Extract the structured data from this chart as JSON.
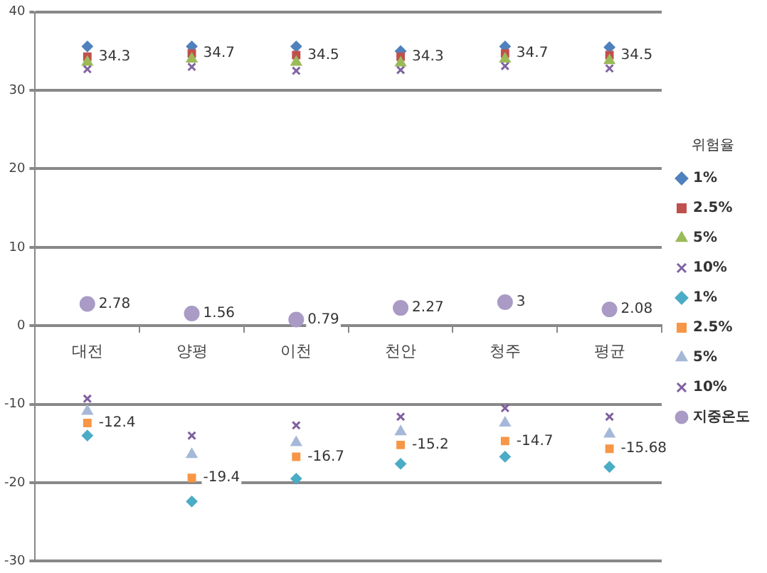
{
  "chart_data": {
    "type": "scatter",
    "categories": [
      "대전",
      "양평",
      "이천",
      "천안",
      "청주",
      "평균"
    ],
    "ylim": [
      -30,
      40
    ],
    "yticks": [
      -30,
      -20,
      -10,
      0,
      10,
      20,
      30,
      40
    ],
    "grid": "y",
    "legend": "right",
    "legend_title": "위험율",
    "series": [
      {
        "name": "1%",
        "color": "#4f81bd",
        "marker": "diamond",
        "values": [
          35.6,
          35.6,
          35.6,
          35.0,
          35.6,
          35.5
        ]
      },
      {
        "name": "2.5%",
        "color": "#c0504d",
        "marker": "square",
        "values": [
          34.3,
          34.7,
          34.5,
          34.3,
          34.7,
          34.5
        ],
        "value_labels": [
          "34.3",
          "34.7",
          "34.5",
          "34.3",
          "34.7",
          "34.5"
        ]
      },
      {
        "name": "5%",
        "color": "#9bbb59",
        "marker": "triangle",
        "values": [
          33.6,
          34.0,
          33.6,
          33.5,
          34.0,
          33.8
        ]
      },
      {
        "name": "10%",
        "color": "#8064a2",
        "marker": "cross",
        "values": [
          32.7,
          33.0,
          32.5,
          32.6,
          33.1,
          32.8
        ]
      },
      {
        "name": "1%",
        "color": "#4bacc6",
        "marker": "diamond",
        "values": [
          -14.0,
          -22.4,
          -19.5,
          -17.6,
          -16.7,
          -18.0
        ]
      },
      {
        "name": "2.5%",
        "color": "#f79646",
        "marker": "square",
        "values": [
          -12.4,
          -19.4,
          -16.7,
          -15.2,
          -14.7,
          -15.68
        ],
        "value_labels": [
          "-12.4",
          "-19.4",
          "-16.7",
          "-15.2",
          "-14.7",
          "-15.68"
        ]
      },
      {
        "name": "5%",
        "color": "#a5b8d8",
        "marker": "triangle",
        "values": [
          -10.9,
          -16.4,
          -14.9,
          -13.5,
          -12.4,
          -13.8
        ]
      },
      {
        "name": "10%",
        "color": "#7f5f9f",
        "marker": "cross",
        "values": [
          -9.3,
          -14.0,
          -12.7,
          -11.6,
          -10.5,
          -11.6
        ]
      },
      {
        "name": "지중온도",
        "color": "#a99bc5",
        "marker": "circle",
        "values": [
          2.78,
          1.56,
          0.79,
          2.27,
          3,
          2.08
        ],
        "value_labels": [
          "2.78",
          "1.56",
          "0.79",
          "2.27",
          "3",
          "2.08"
        ]
      }
    ]
  }
}
